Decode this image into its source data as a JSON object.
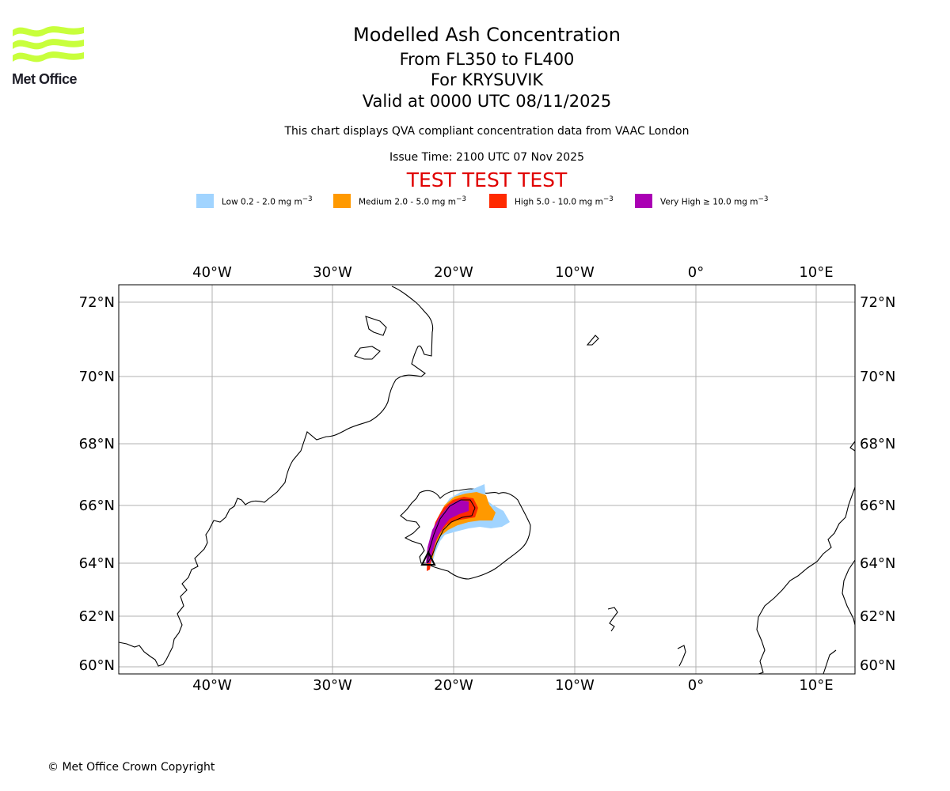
{
  "branding": {
    "logo_text": "Met Office"
  },
  "header": {
    "title": "Modelled Ash Concentration",
    "levels": "From FL350 to FL400",
    "volcano": "For KRYSUVIK",
    "valid_time": "Valid at 0000 UTC 08/11/2025",
    "description": "This chart displays QVA compliant concentration data from VAAC London",
    "issue_time": "Issue Time: 2100 UTC 07 Nov 2025",
    "test_banner": "TEST TEST TEST"
  },
  "legend": [
    {
      "label": "Low 0.2 - 2.0 mg m",
      "color": "#a1d4ff"
    },
    {
      "label": "Medium 2.0 - 5.0 mg m",
      "color": "#ff9900"
    },
    {
      "label": "High 5.0 - 10.0 mg m",
      "color": "#ff2a00"
    },
    {
      "label": "Very High ≥ 10.0 mg m",
      "color": "#aa00b4"
    }
  ],
  "legend_unit_exponent": "−3",
  "map": {
    "lon_range": [
      -47.7,
      13.1
    ],
    "lat_range": [
      59.7,
      72.5
    ],
    "lon_ticks": [
      "40°W",
      "30°W",
      "20°W",
      "10°W",
      "0°",
      "10°E"
    ],
    "lat_ticks": [
      "72°N",
      "70°N",
      "68°N",
      "66°N",
      "64°N",
      "62°N",
      "60°N"
    ],
    "volcano_marker": {
      "name": "KRYSUVIK",
      "lon": -22.1,
      "lat": 63.9
    }
  },
  "footer": {
    "copyright": "© Met Office Crown Copyright"
  }
}
